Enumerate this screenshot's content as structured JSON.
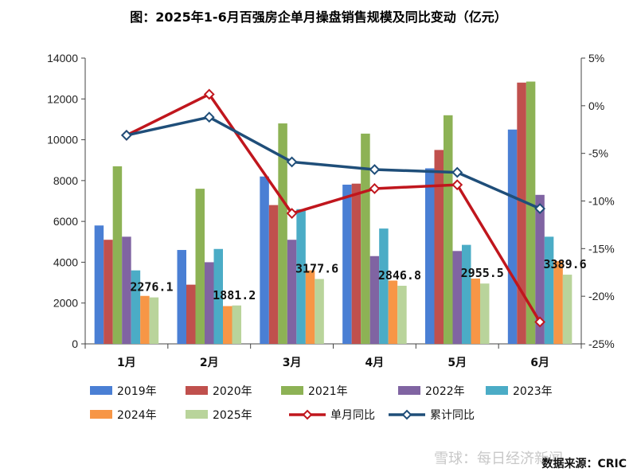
{
  "chart_data": {
    "type": "bar",
    "title": "图：2025年1-6月百强房企单月操盘销售规模及同比变动（亿元）",
    "categories": [
      "1月",
      "2月",
      "3月",
      "4月",
      "5月",
      "6月"
    ],
    "y_left": {
      "min": 0,
      "max": 14000,
      "ticks": [
        "0",
        "2000",
        "4000",
        "6000",
        "8000",
        "10000",
        "12000",
        "14000"
      ]
    },
    "y_right": {
      "min": -25,
      "max": 5,
      "ticks": [
        "5%",
        "0%",
        "-5%",
        "-10%",
        "-15%",
        "-20%",
        "-25%"
      ]
    },
    "series": [
      {
        "name": "2019年",
        "color": "#4a7fd4",
        "values": [
          5800,
          4600,
          8200,
          7800,
          8600,
          10500
        ]
      },
      {
        "name": "2020年",
        "color": "#c0504d",
        "values": [
          5100,
          2900,
          6800,
          7850,
          9500,
          12800
        ]
      },
      {
        "name": "2021年",
        "color": "#8db255",
        "values": [
          8700,
          7600,
          10800,
          10300,
          11200,
          12850
        ]
      },
      {
        "name": "2022年",
        "color": "#8064a2",
        "values": [
          5250,
          4000,
          5100,
          4300,
          4550,
          7300
        ]
      },
      {
        "name": "2023年",
        "color": "#4bacc6",
        "values": [
          3600,
          4650,
          6600,
          5650,
          4850,
          5250
        ]
      },
      {
        "name": "2024年",
        "color": "#f79646",
        "values": [
          2350,
          1850,
          3600,
          3100,
          3200,
          4050
        ]
      },
      {
        "name": "2025年",
        "color": "#b9d49b",
        "values": [
          2276.1,
          1881.2,
          3177.6,
          2846.8,
          2955.5,
          3389.6
        ]
      }
    ],
    "data_labels": [
      "2276.1",
      "1881.2",
      "3177.6",
      "2846.8",
      "2955.5",
      "3389.6"
    ],
    "lines": [
      {
        "name": "单月同比",
        "color": "#c0161d",
        "axis": "right",
        "values": [
          -3.1,
          1.2,
          -11.3,
          -8.7,
          -8.3,
          -22.7
        ]
      },
      {
        "name": "累计同比",
        "color": "#1f4e79",
        "axis": "right",
        "values": [
          -3.1,
          -1.2,
          -5.9,
          -6.7,
          -7.0,
          -10.8
        ]
      }
    ],
    "legend_position": "bottom",
    "grid": false
  },
  "source": "数据来源：CRIC",
  "watermark": "雪球：每日经济新闻"
}
